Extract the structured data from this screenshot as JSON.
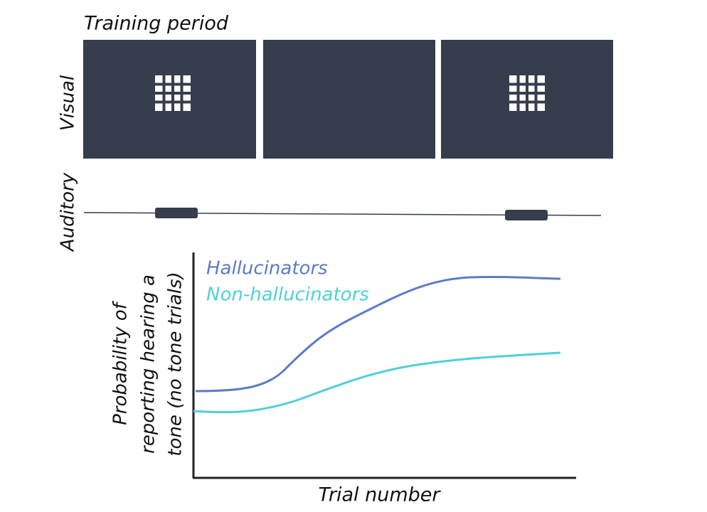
{
  "title": "Training period",
  "rows": {
    "visual": "Visual",
    "auditory": "Auditory"
  },
  "plot": {
    "legend": [
      "Hallucinators",
      "Non-hallucinators"
    ],
    "y_label": [
      "Probability of",
      "reporting hearing a",
      "tone (no tone trials)"
    ],
    "x_label": "Trial number"
  }
}
